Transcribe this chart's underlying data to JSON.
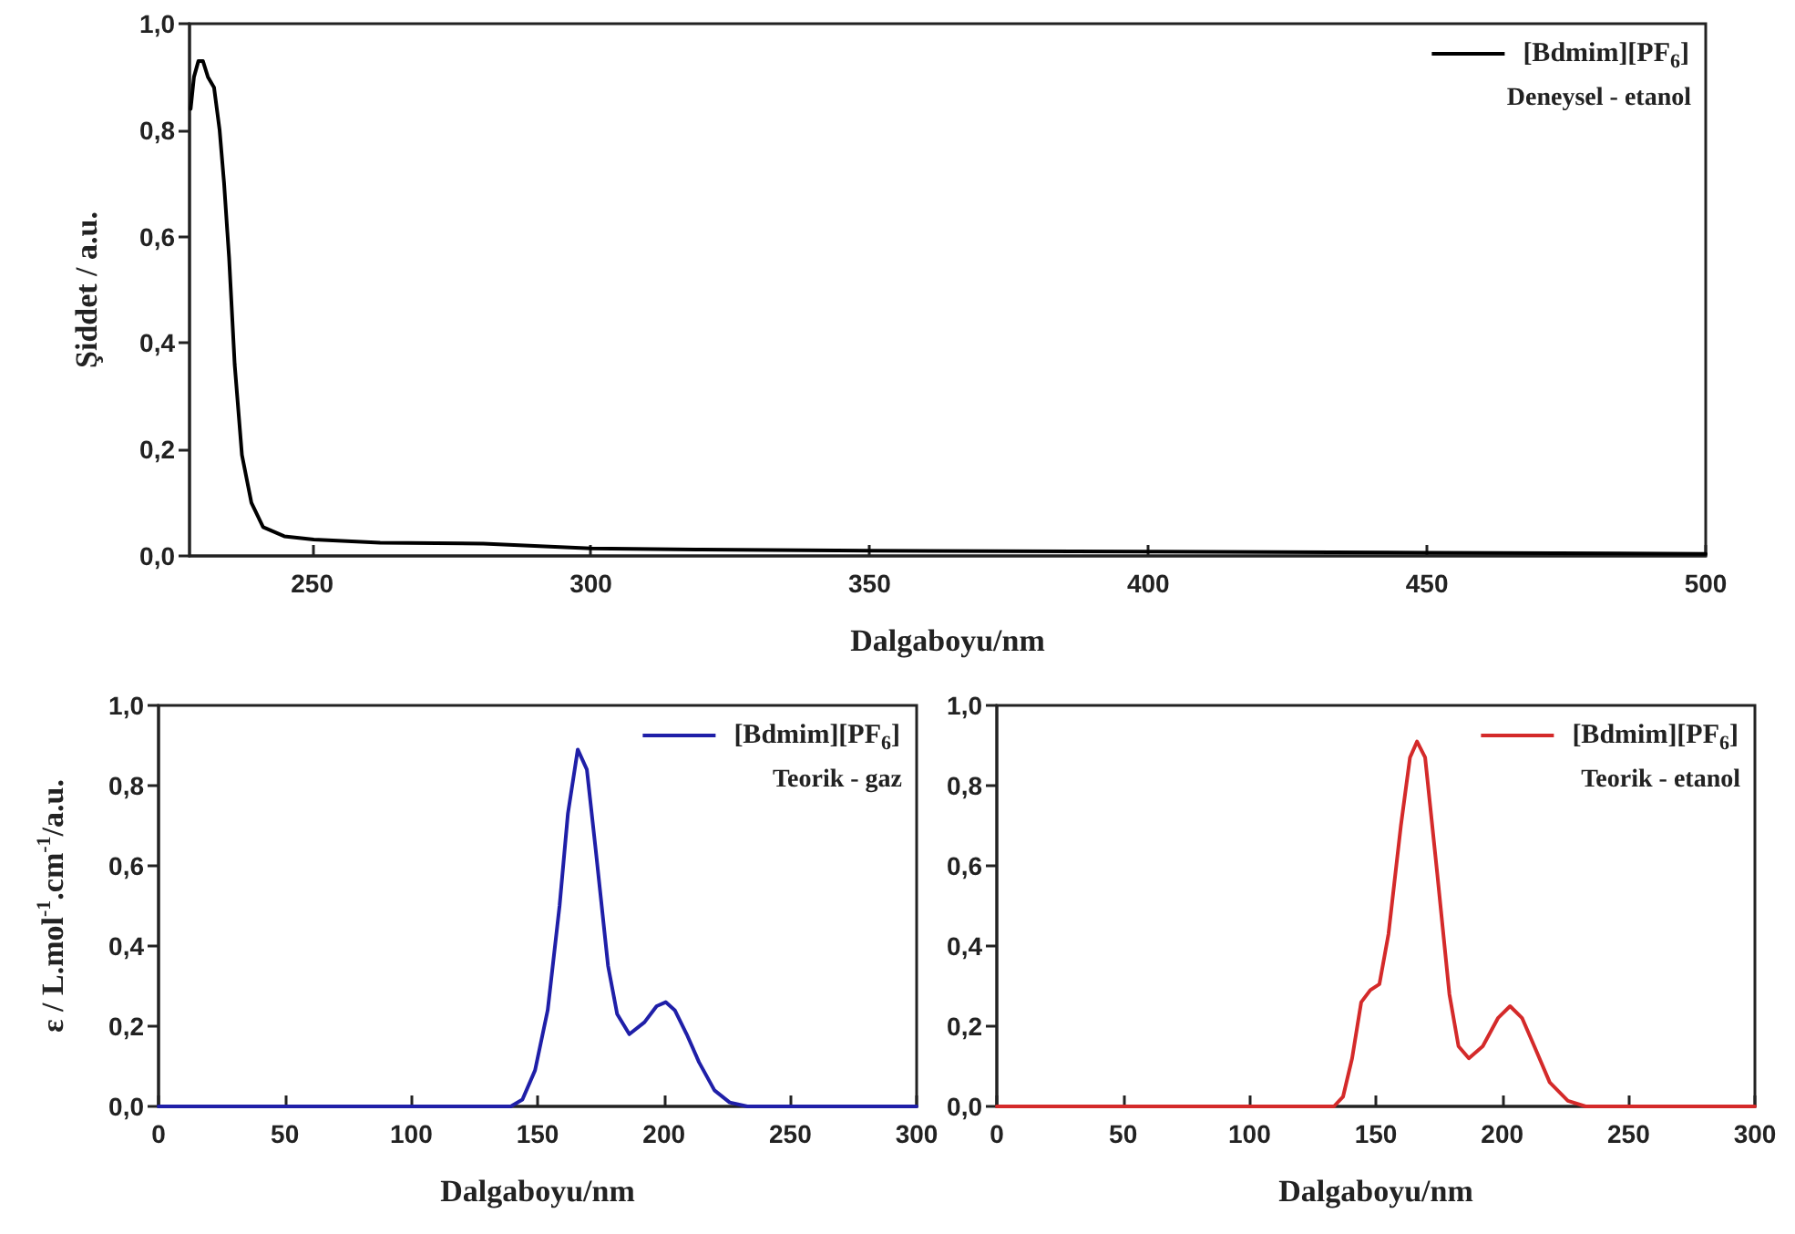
{
  "chart_data": [
    {
      "type": "line",
      "xlabel": "Dalgaboyu/nm",
      "ylabel": "Şiddet / a.u.",
      "xlim": [
        228,
        500
      ],
      "xticks": [
        250,
        300,
        350,
        400,
        450,
        500
      ],
      "ylim": [
        0,
        1
      ],
      "yticks": [
        {
          "value": 0,
          "label": "0,0"
        },
        {
          "value": 0.2,
          "label": "0,2"
        },
        {
          "value": 0.4,
          "label": "0,4"
        },
        {
          "value": 0.6,
          "label": "0,6"
        },
        {
          "value": 0.8,
          "label": "0,8"
        },
        {
          "value": 1,
          "label": "1,0"
        }
      ],
      "legend": "top right",
      "grid": false,
      "marker": "none",
      "annotations": [
        "Deneysel - etanol"
      ],
      "series": [
        {
          "name": "[Bdmim][PF$_{6}$]",
          "color": "#000000",
          "x": [
            228.2,
            228.8,
            229.6,
            230.4,
            231.3,
            232.4,
            233.4,
            234.2,
            235.1,
            236.1,
            237.4,
            239.1,
            241.2,
            245,
            250.3,
            262.2,
            280.7,
            300,
            320,
            350,
            400,
            450,
            500
          ],
          "values": [
            0.84,
            0.9,
            0.93,
            0.93,
            0.9,
            0.88,
            0.8,
            0.7,
            0.56,
            0.36,
            0.19,
            0.1,
            0.054,
            0.037,
            0.031,
            0.025,
            0.023,
            0.014,
            0.012,
            0.01,
            0.008,
            0.006,
            0.004
          ]
        }
      ]
    },
    {
      "type": "line",
      "xlabel": "Dalgaboyu/nm",
      "ylabel": "ε / L.mol$^{-1}$.cm$^{-1}$/a.u.",
      "xlim": [
        0,
        300
      ],
      "xticks": [
        0,
        50,
        100,
        150,
        200,
        250,
        300
      ],
      "ylim": [
        0,
        1
      ],
      "yticks": [
        {
          "value": 0,
          "label": "0,0"
        },
        {
          "value": 0.2,
          "label": "0,2"
        },
        {
          "value": 0.4,
          "label": "0,4"
        },
        {
          "value": 0.6,
          "label": "0,6"
        },
        {
          "value": 0.8,
          "label": "0,8"
        },
        {
          "value": 1,
          "label": "1,0"
        }
      ],
      "legend": "top right",
      "grid": false,
      "marker": "none",
      "annotations": [
        "Teorik - gaz"
      ],
      "series": [
        {
          "name": "[Bdmim][PF$_{6}$]",
          "color": "#1f1fa8",
          "x": [
            0,
            139.4,
            144,
            149,
            154,
            158.7,
            162,
            165.9,
            169.5,
            173,
            177.9,
            181.5,
            186.3,
            192.3,
            197.1,
            200.7,
            204.3,
            209,
            213.9,
            220,
            226,
            233,
            300
          ],
          "values": [
            0,
            0,
            0.017,
            0.09,
            0.24,
            0.5,
            0.73,
            0.89,
            0.84,
            0.64,
            0.35,
            0.23,
            0.18,
            0.21,
            0.25,
            0.26,
            0.24,
            0.18,
            0.11,
            0.04,
            0.01,
            0,
            0
          ]
        }
      ]
    },
    {
      "type": "line",
      "xlabel": "Dalgaboyu/nm",
      "xlim": [
        0,
        300
      ],
      "xticks": [
        0,
        50,
        100,
        150,
        200,
        250,
        300
      ],
      "ylim": [
        0,
        1
      ],
      "yticks": [
        {
          "value": 0,
          "label": "0,0"
        },
        {
          "value": 0.2,
          "label": "0,2"
        },
        {
          "value": 0.4,
          "label": "0,4"
        },
        {
          "value": 0.6,
          "label": "0,6"
        },
        {
          "value": 0.8,
          "label": "0,8"
        },
        {
          "value": 1,
          "label": "1,0"
        }
      ],
      "legend": "top right",
      "grid": false,
      "marker": "none",
      "annotations": [
        "Teorik - etanol"
      ],
      "series": [
        {
          "name": "[Bdmim][PF$_{6}$]",
          "color": "#d42a2a",
          "x": [
            0,
            133.4,
            137,
            140.6,
            144.2,
            147.8,
            151.4,
            155,
            159.9,
            163.5,
            166.3,
            169.5,
            174.3,
            179.1,
            182.7,
            186.8,
            192.3,
            198.3,
            203.1,
            207.9,
            212.7,
            218.8,
            226,
            233,
            300
          ],
          "values": [
            0,
            0,
            0.024,
            0.12,
            0.26,
            0.29,
            0.305,
            0.43,
            0.7,
            0.87,
            0.91,
            0.87,
            0.58,
            0.28,
            0.15,
            0.12,
            0.15,
            0.22,
            0.25,
            0.22,
            0.15,
            0.06,
            0.014,
            0,
            0
          ]
        }
      ]
    }
  ]
}
